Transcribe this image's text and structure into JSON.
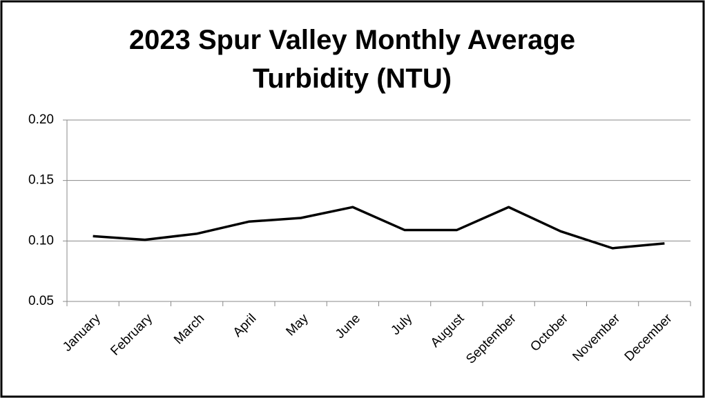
{
  "chart_data": {
    "type": "line",
    "title": "2023 Spur Valley Monthly Average Turbidity (NTU)",
    "categories": [
      "January",
      "February",
      "March",
      "April",
      "May",
      "June",
      "July",
      "August",
      "September",
      "October",
      "November",
      "December"
    ],
    "series": [
      {
        "color": "#000000",
        "values": [
          0.104,
          0.101,
          0.106,
          0.116,
          0.119,
          0.128,
          0.109,
          0.109,
          0.128,
          0.108,
          0.094,
          0.098
        ]
      }
    ],
    "ylim": [
      0.05,
      0.2
    ],
    "yticks": [
      {
        "value": 0.05,
        "label": "0.05"
      },
      {
        "value": 0.1,
        "label": "0.10"
      },
      0.15,
      {
        "value": 0.2,
        "label": "0.20"
      }
    ],
    "grid": true
  }
}
